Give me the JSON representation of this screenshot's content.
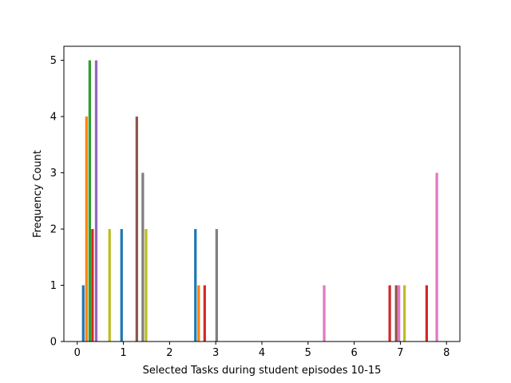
{
  "chart_data": {
    "type": "bar",
    "title": "",
    "xlabel": "Selected Tasks during student episodes 10-15",
    "ylabel": "Frequency Count",
    "xlim": [
      -0.29,
      8.29
    ],
    "ylim": [
      0,
      5.25
    ],
    "xticks": [
      "0",
      "1",
      "2",
      "3",
      "4",
      "5",
      "6",
      "7",
      "8"
    ],
    "yticks": [
      "0",
      "1",
      "2",
      "3",
      "4",
      "5"
    ],
    "grid": false,
    "legend": "none",
    "bar_width": 0.056,
    "bars": [
      {
        "x": 0.13,
        "value": 1,
        "color": "#1f77b4"
      },
      {
        "x": 0.2,
        "value": 4,
        "color": "#ff7f0e"
      },
      {
        "x": 0.27,
        "value": 5,
        "color": "#2ca02c"
      },
      {
        "x": 0.33,
        "value": 2,
        "color": "#d62728"
      },
      {
        "x": 0.41,
        "value": 5,
        "color": "#9467bd"
      },
      {
        "x": 0.7,
        "value": 2,
        "color": "#bcbd22"
      },
      {
        "x": 0.96,
        "value": 2,
        "color": "#1f77b4"
      },
      {
        "x": 1.29,
        "value": 4,
        "color": "#8c564b"
      },
      {
        "x": 1.42,
        "value": 3,
        "color": "#7f7f7f"
      },
      {
        "x": 1.49,
        "value": 2,
        "color": "#bcbd22"
      },
      {
        "x": 2.56,
        "value": 2,
        "color": "#1f77b4"
      },
      {
        "x": 2.63,
        "value": 1,
        "color": "#ff7f0e"
      },
      {
        "x": 2.76,
        "value": 1,
        "color": "#d62728"
      },
      {
        "x": 3.02,
        "value": 2,
        "color": "#7f7f7f"
      },
      {
        "x": 5.35,
        "value": 1,
        "color": "#e377c2"
      },
      {
        "x": 6.77,
        "value": 1,
        "color": "#d62728"
      },
      {
        "x": 6.91,
        "value": 1,
        "color": "#8c564b"
      },
      {
        "x": 6.97,
        "value": 1,
        "color": "#e377c2"
      },
      {
        "x": 7.09,
        "value": 1,
        "color": "#bcbd22"
      },
      {
        "x": 7.57,
        "value": 1,
        "color": "#d62728"
      },
      {
        "x": 7.79,
        "value": 3,
        "color": "#e377c2"
      }
    ]
  }
}
